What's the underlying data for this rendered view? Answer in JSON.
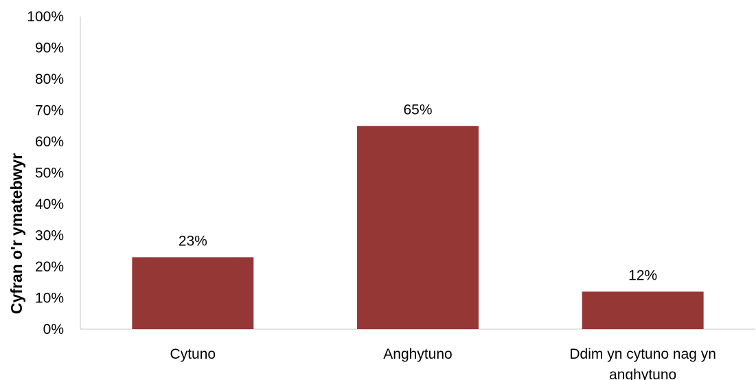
{
  "chart_data": {
    "type": "bar",
    "categories": [
      [
        "Cytuno"
      ],
      [
        "Anghytuno"
      ],
      [
        "Ddim yn cytuno nag yn",
        "anghytuno"
      ]
    ],
    "values": [
      23,
      65,
      12
    ],
    "data_labels": [
      "23%",
      "65%",
      "12%"
    ],
    "title": "",
    "xlabel": "",
    "ylabel": "Cyfran o'r ymatebwyr",
    "ylim": [
      0,
      100
    ],
    "yticks": [
      0,
      10,
      20,
      30,
      40,
      50,
      60,
      70,
      80,
      90,
      100
    ],
    "ytick_labels": [
      "0%",
      "10%",
      "20%",
      "30%",
      "40%",
      "50%",
      "60%",
      "70%",
      "80%",
      "90%",
      "100%"
    ],
    "grid": false,
    "legend": "none",
    "bar_color": "#953735",
    "axis_color": "#d9d9d9"
  }
}
